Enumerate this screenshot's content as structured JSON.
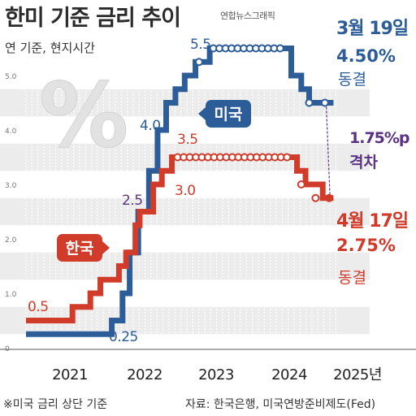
{
  "title": "한미 기준 금리 추이",
  "credit": "연합뉴스그래픽",
  "subtitle": "연 기준, 현지시간",
  "footnote": "※미국 금리 상단 기준",
  "source": "자료: 한국은행, 미국연방준비제도(Fed)",
  "watermark": "%",
  "colors": {
    "us": "#2c5d99",
    "kr": "#d13b2a",
    "gap": "#5a3384",
    "band": "#ececec",
    "grid": "#cfcfcf"
  },
  "chart_data": {
    "type": "line",
    "ylim": [
      0,
      5.5
    ],
    "yticks": [
      "0",
      "1.0",
      "2.0",
      "3.0",
      "4.0",
      "5.0"
    ],
    "x_period_labels": [
      "2021",
      "2022",
      "2023",
      "2024",
      "2025년"
    ],
    "series": [
      {
        "name": "미국",
        "values": [
          [
            2021.0,
            0.25
          ],
          [
            2022.2,
            0.5
          ],
          [
            2022.35,
            1.0
          ],
          [
            2022.45,
            1.75
          ],
          [
            2022.57,
            2.5
          ],
          [
            2022.72,
            3.25
          ],
          [
            2022.84,
            4.0
          ],
          [
            2022.96,
            4.5
          ],
          [
            2023.09,
            4.75
          ],
          [
            2023.22,
            5.0
          ],
          [
            2023.37,
            5.25
          ],
          [
            2023.57,
            5.5
          ],
          [
            2024.71,
            5.0
          ],
          [
            2024.85,
            4.75
          ],
          [
            2024.96,
            4.5
          ],
          [
            2025.3,
            4.5
          ]
        ],
        "start_label": "0.25",
        "labels": [
          "2.5",
          "4.0",
          "5.5"
        ]
      },
      {
        "name": "한국",
        "values": [
          [
            2021.0,
            0.5
          ],
          [
            2021.65,
            0.75
          ],
          [
            2021.9,
            1.0
          ],
          [
            2022.04,
            1.25
          ],
          [
            2022.3,
            1.5
          ],
          [
            2022.4,
            1.75
          ],
          [
            2022.53,
            2.25
          ],
          [
            2022.59,
            2.5
          ],
          [
            2022.78,
            3.0
          ],
          [
            2022.9,
            3.25
          ],
          [
            2023.04,
            3.5
          ],
          [
            2024.79,
            3.25
          ],
          [
            2024.91,
            3.0
          ],
          [
            2025.15,
            2.75
          ],
          [
            2025.3,
            2.75
          ]
        ],
        "start_label": "0.5",
        "labels": [
          "3.0",
          "3.5"
        ]
      }
    ],
    "annotations": {
      "us_date": "3월 19일",
      "us_rate": "4.50%",
      "us_status": "동결",
      "gap_value": "1.75%p",
      "gap_label": "격차",
      "kr_date": "4월 17일",
      "kr_rate": "2.75%",
      "kr_status": "동결"
    }
  }
}
